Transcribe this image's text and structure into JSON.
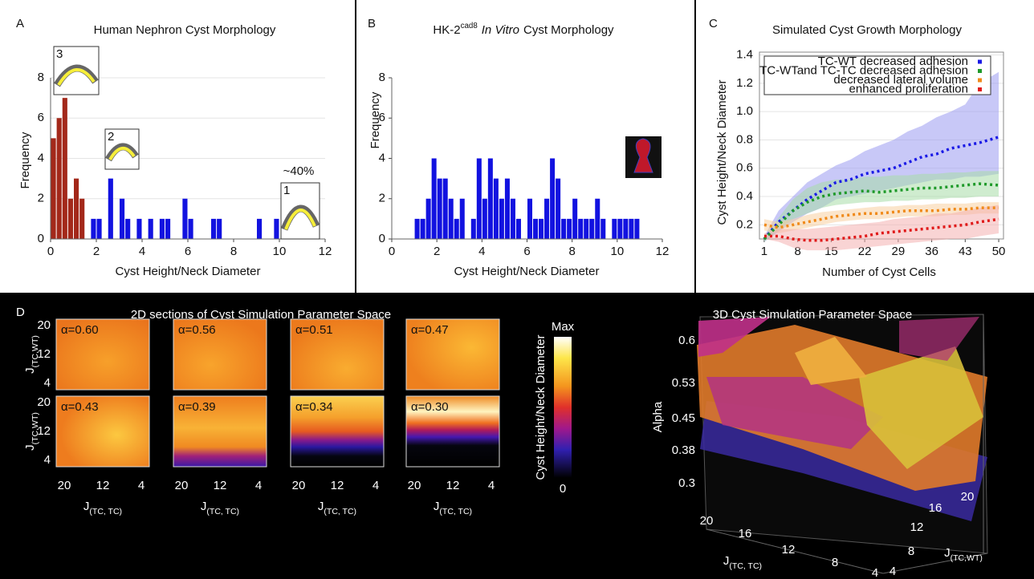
{
  "chart_data": [
    {
      "type": "histogram",
      "panel_label": "A",
      "title": "Human Nephron Cyst Morphology",
      "x_label": "Cyst Height/Neck Diameter",
      "y_label": "Frequency",
      "bins": [
        0,
        0.25,
        0.5,
        0.75,
        1,
        1.25,
        1.5,
        1.75,
        2,
        2.25,
        2.5,
        2.75,
        3,
        3.25,
        3.5,
        3.75,
        4,
        4.25,
        4.5,
        4.75,
        5,
        5.25,
        5.5,
        5.75,
        6,
        6.25,
        6.5,
        6.75,
        7,
        7.25,
        7.5,
        7.75,
        8,
        8.25,
        8.5,
        8.75,
        9,
        9.25,
        9.5,
        9.75,
        10,
        10.25,
        10.5,
        10.75,
        11,
        11.25,
        11.5,
        11.75,
        12
      ],
      "series": [
        {
          "color": "#a3281a",
          "values": [
            5,
            6,
            7,
            2,
            3,
            2,
            0,
            0,
            0,
            0,
            0,
            0,
            0,
            0,
            0,
            0,
            0,
            0,
            0,
            0,
            0,
            0,
            0,
            0,
            0,
            0,
            0,
            0,
            0,
            0,
            0,
            0,
            0,
            0,
            0,
            0,
            0,
            0,
            0,
            0,
            0,
            0,
            0,
            0,
            0,
            0,
            0,
            0
          ]
        },
        {
          "color": "#1212e0",
          "values": [
            0,
            0,
            0,
            0,
            0,
            0,
            0,
            1,
            1,
            0,
            3,
            0,
            2,
            1,
            0,
            1,
            0,
            1,
            0,
            1,
            1,
            0,
            0,
            2,
            1,
            0,
            0,
            0,
            1,
            1,
            0,
            0,
            0,
            0,
            0,
            0,
            1,
            0,
            0,
            1,
            0,
            0,
            0,
            0,
            0,
            0,
            0,
            0
          ]
        }
      ],
      "xlim": [
        0,
        12
      ],
      "ylim": [
        0,
        8
      ],
      "xticks": [
        0,
        2,
        4,
        6,
        8,
        10,
        12
      ],
      "yticks": [
        0,
        2,
        4,
        6,
        8
      ],
      "grid": true,
      "insets": [
        {
          "label": "3"
        },
        {
          "label": "2"
        },
        {
          "label": "1"
        }
      ],
      "annotation": "~40%"
    },
    {
      "type": "histogram",
      "panel_label": "B",
      "title": {
        "main": "HK-2",
        "sup": "cad8",
        "italic": "In Vitro",
        "rest": "Cyst Morphology"
      },
      "x_label": "Cyst Height/Neck Diameter",
      "y_label": "Frequency",
      "bins": [
        0,
        0.25,
        0.5,
        0.75,
        1,
        1.25,
        1.5,
        1.75,
        2,
        2.25,
        2.5,
        2.75,
        3,
        3.25,
        3.5,
        3.75,
        4,
        4.25,
        4.5,
        4.75,
        5,
        5.25,
        5.5,
        5.75,
        6,
        6.25,
        6.5,
        6.75,
        7,
        7.25,
        7.5,
        7.75,
        8,
        8.25,
        8.5,
        8.75,
        9,
        9.25,
        9.5,
        9.75,
        10,
        10.25,
        10.5,
        10.75,
        11,
        11.25,
        11.5,
        11.75,
        12
      ],
      "series": [
        {
          "color": "#1212e0",
          "values": [
            0,
            0,
            0,
            0,
            1,
            1,
            2,
            4,
            3,
            3,
            2,
            1,
            2,
            0,
            1,
            4,
            2,
            4,
            3,
            2,
            3,
            2,
            1,
            0,
            2,
            1,
            1,
            2,
            4,
            3,
            1,
            1,
            2,
            1,
            1,
            1,
            2,
            1,
            0,
            1,
            1,
            1,
            1,
            1,
            0,
            0,
            0,
            0
          ]
        }
      ],
      "xlim": [
        0,
        12
      ],
      "ylim": [
        0,
        8
      ],
      "xticks": [
        0,
        2,
        4,
        6,
        8,
        10,
        12
      ],
      "yticks": [
        0,
        2,
        4,
        6,
        8
      ],
      "grid": false
    },
    {
      "type": "line",
      "panel_label": "C",
      "title": "Simulated Cyst Growth Morphology",
      "x_label": "Number of Cyst Cells",
      "y_label": "Cyst Height/Neck Diameter",
      "x": [
        1,
        4,
        7,
        10,
        13,
        16,
        19,
        22,
        25,
        28,
        31,
        34,
        37,
        40,
        43,
        46,
        50
      ],
      "series": [
        {
          "name": "TC-WT decreased adhesion",
          "color": "#1a1ae6",
          "band_color": "#9a9af0",
          "values": [
            0.1,
            0.22,
            0.3,
            0.38,
            0.44,
            0.5,
            0.52,
            0.56,
            0.58,
            0.6,
            0.64,
            0.68,
            0.7,
            0.74,
            0.76,
            0.78,
            0.82
          ],
          "upper": [
            0.12,
            0.3,
            0.4,
            0.5,
            0.56,
            0.62,
            0.66,
            0.72,
            0.76,
            0.8,
            0.86,
            0.9,
            0.96,
            1.0,
            1.05,
            1.2,
            1.28
          ],
          "lower": [
            0.08,
            0.15,
            0.22,
            0.28,
            0.32,
            0.38,
            0.4,
            0.42,
            0.44,
            0.46,
            0.48,
            0.5,
            0.52,
            0.52,
            0.54,
            0.54,
            0.56
          ]
        },
        {
          "name": "TC-WTand TC-TC decreased adhesion",
          "color": "#1f9a2a",
          "band_color": "#a8dca8",
          "values": [
            0.1,
            0.2,
            0.3,
            0.36,
            0.4,
            0.42,
            0.43,
            0.44,
            0.43,
            0.44,
            0.45,
            0.46,
            0.46,
            0.47,
            0.48,
            0.49,
            0.48
          ],
          "upper": [
            0.12,
            0.25,
            0.38,
            0.46,
            0.5,
            0.52,
            0.52,
            0.54,
            0.54,
            0.55,
            0.55,
            0.56,
            0.56,
            0.57,
            0.57,
            0.58,
            0.58
          ],
          "lower": [
            0.08,
            0.16,
            0.24,
            0.28,
            0.32,
            0.34,
            0.35,
            0.36,
            0.36,
            0.37,
            0.37,
            0.38,
            0.38,
            0.39,
            0.39,
            0.4,
            0.4
          ]
        },
        {
          "name": "decreased lateral volume",
          "color": "#f08a1a",
          "band_color": "#f8d0a0",
          "values": [
            0.2,
            0.18,
            0.2,
            0.22,
            0.24,
            0.26,
            0.27,
            0.28,
            0.28,
            0.29,
            0.3,
            0.3,
            0.3,
            0.31,
            0.31,
            0.32,
            0.32
          ],
          "upper": [
            0.24,
            0.22,
            0.24,
            0.27,
            0.29,
            0.3,
            0.31,
            0.32,
            0.33,
            0.33,
            0.34,
            0.34,
            0.35,
            0.35,
            0.35,
            0.36,
            0.36
          ],
          "lower": [
            0.16,
            0.14,
            0.16,
            0.18,
            0.2,
            0.22,
            0.23,
            0.24,
            0.24,
            0.25,
            0.26,
            0.26,
            0.26,
            0.27,
            0.27,
            0.28,
            0.28
          ]
        },
        {
          "name": "enhanced proliferation",
          "color": "#e01a1a",
          "band_color": "#f4b0b0",
          "values": [
            0.12,
            0.12,
            0.1,
            0.09,
            0.09,
            0.1,
            0.11,
            0.12,
            0.14,
            0.15,
            0.16,
            0.17,
            0.18,
            0.19,
            0.2,
            0.22,
            0.24
          ],
          "upper": [
            0.14,
            0.17,
            0.17,
            0.17,
            0.18,
            0.19,
            0.2,
            0.21,
            0.22,
            0.24,
            0.25,
            0.26,
            0.28,
            0.28,
            0.3,
            0.32,
            0.34
          ],
          "lower": [
            0.1,
            0.08,
            0.04,
            0.02,
            0.02,
            0.02,
            0.03,
            0.04,
            0.05,
            0.06,
            0.07,
            0.08,
            0.09,
            0.1,
            0.1,
            0.12,
            0.14
          ]
        }
      ],
      "xlim": [
        0,
        51
      ],
      "ylim": [
        0.1,
        1.42
      ],
      "xticks": [
        1,
        8,
        15,
        22,
        29,
        36,
        43,
        50
      ],
      "yticks": [
        0.2,
        0.4,
        0.6,
        0.8,
        {
          "value": 1,
          "label": "1.0"
        },
        1.2,
        1.4
      ],
      "grid": true,
      "legend": "top"
    }
  ],
  "heatmaps": {
    "panel_label": "D",
    "title": "2D sections of Cyst Simulation Parameter Space",
    "y_label": {
      "main": "J",
      "sub": "(TC,WT)"
    },
    "x_label": {
      "main": "J",
      "sub": "(TC, TC)"
    },
    "yticks": [
      20,
      12,
      4
    ],
    "xticks": [
      20,
      12,
      4
    ],
    "panels": [
      {
        "label": "α=0.60"
      },
      {
        "label": "α=0.56"
      },
      {
        "label": "α=0.51"
      },
      {
        "label": "α=0.47"
      },
      {
        "label": "α=0.43"
      },
      {
        "label": "α=0.39"
      },
      {
        "label": "α=0.34"
      },
      {
        "label": "α=0.30"
      }
    ]
  },
  "colorbar": {
    "max_label": "Max",
    "min_label": "0",
    "label": "Cyst Height/Neck Diameter"
  },
  "space3d": {
    "title": "3D Cyst Simulation Parameter Space",
    "z_label": "Alpha",
    "z_ticks": [
      0.6,
      0.53,
      0.45,
      0.38,
      0.3
    ],
    "x_label": {
      "main": "J",
      "sub": "(TC, TC)"
    },
    "x_ticks": [
      20,
      16,
      12,
      8,
      4
    ],
    "y_label": {
      "main": "J",
      "sub": "(TC,WT)"
    },
    "y_ticks": [
      4,
      8,
      12,
      16,
      20
    ]
  }
}
